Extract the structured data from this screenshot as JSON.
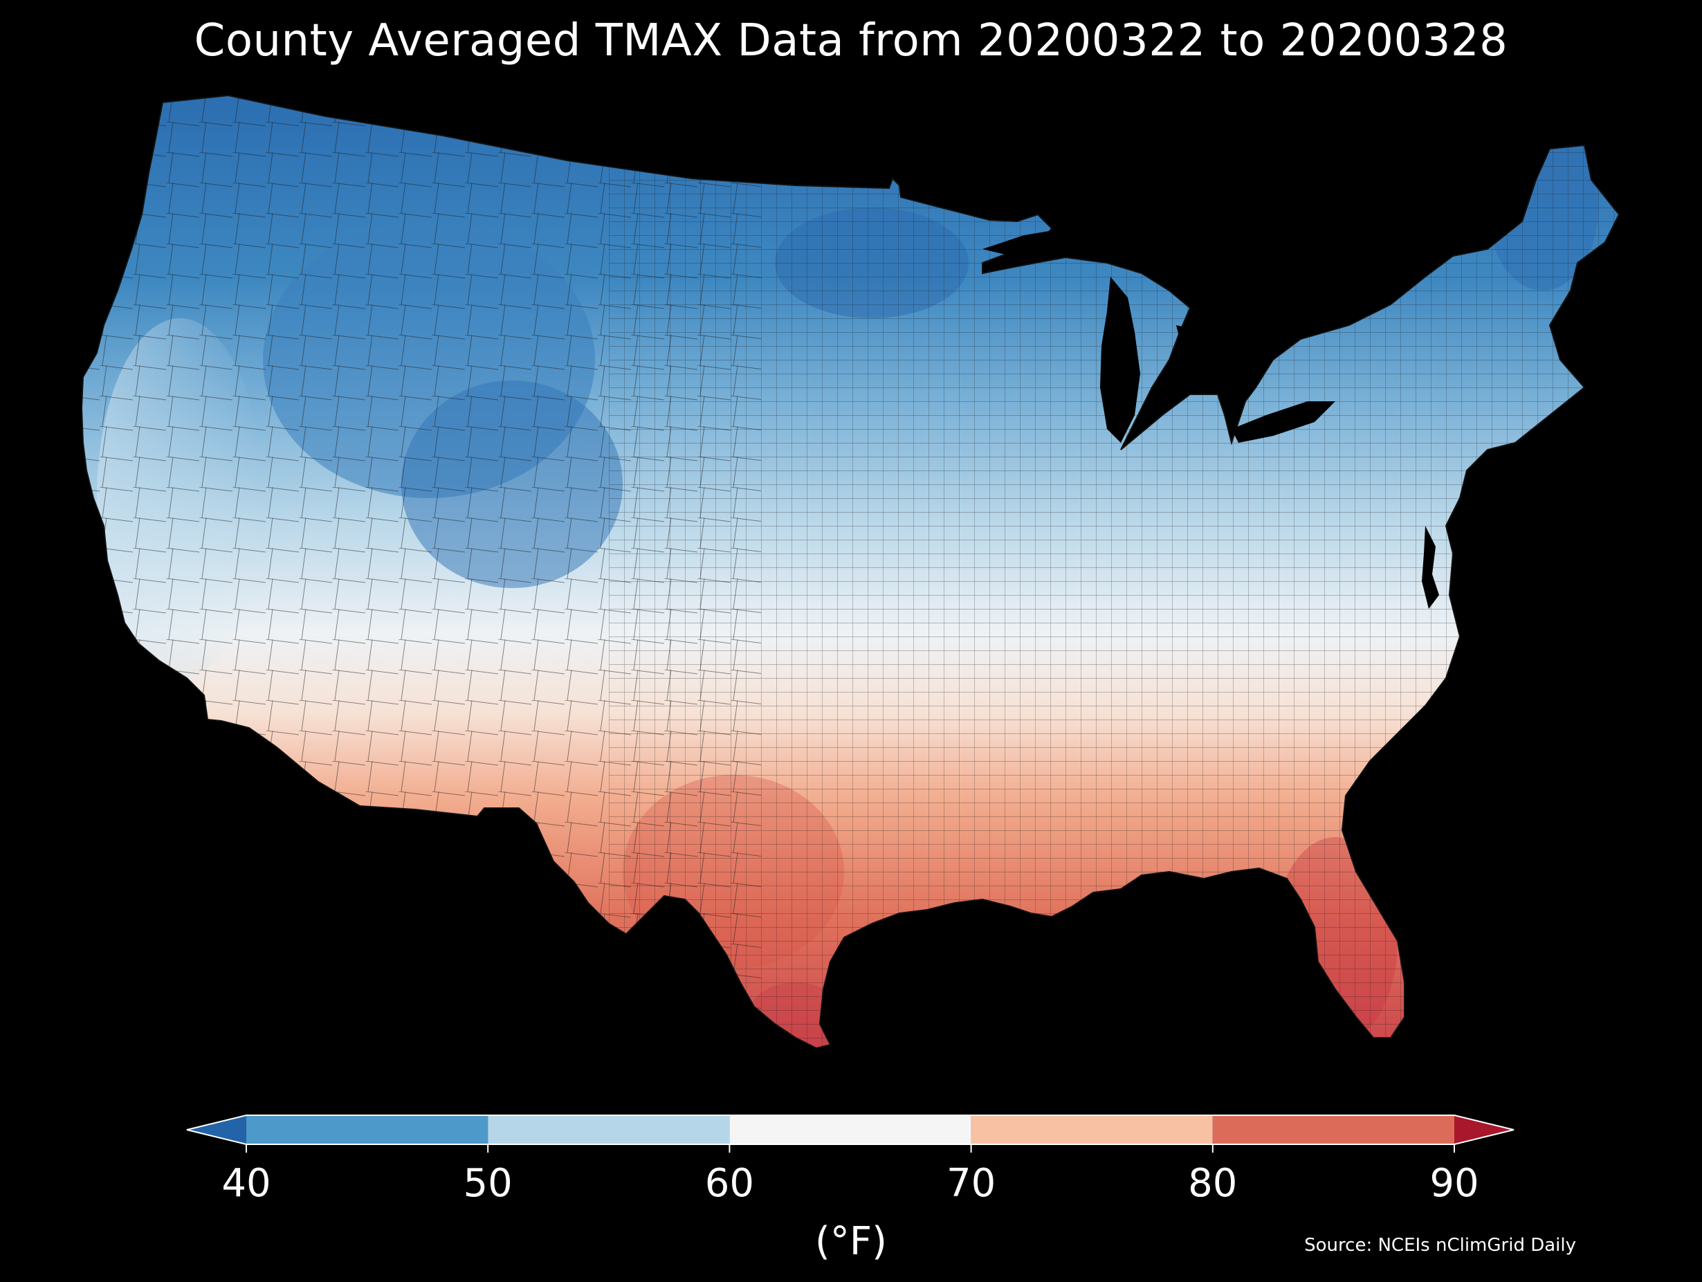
{
  "title": "County Averaged TMAX Data from 20200322 to 20200328",
  "source": "Source: NCEIs nClimGrid Daily",
  "colorbar": {
    "units": "(°F)",
    "ticks": [
      "40",
      "50",
      "60",
      "70",
      "80",
      "90"
    ],
    "bins": [
      {
        "from": 40,
        "to": 50,
        "color": "#4d99c9"
      },
      {
        "from": 50,
        "to": 60,
        "color": "#b5d6e8"
      },
      {
        "from": 60,
        "to": 70,
        "color": "#f5f5f5"
      },
      {
        "from": 70,
        "to": 80,
        "color": "#f8c1a3"
      },
      {
        "from": 80,
        "to": 90,
        "color": "#dc6c59"
      }
    ],
    "under_color": "#2364a8",
    "over_color": "#a8172b"
  },
  "map": {
    "region": "Contiguous United States counties",
    "colors": {
      "north_cold": "#2f74b5",
      "north": "#4d99c9",
      "central": "#b5d6e8",
      "mid": "#f2f4f6",
      "south": "#f3a989",
      "far_south": "#d6554a",
      "water": "#000000"
    }
  }
}
